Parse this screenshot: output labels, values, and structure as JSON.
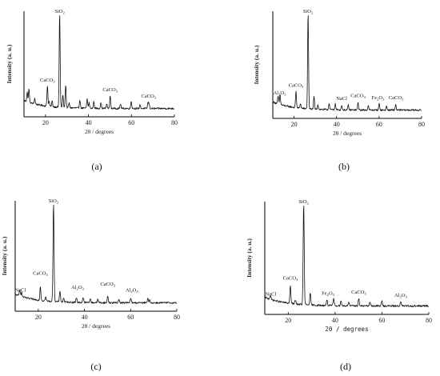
{
  "chart_data": [
    {
      "type": "line",
      "panel_label": "(a)",
      "xlabel": "2θ / degrees",
      "ylabel": "Intensity (a. u.)",
      "xlim": [
        10,
        80
      ],
      "xticks": [
        20,
        40,
        60,
        80
      ],
      "grid": false,
      "peaks": [
        {
          "x": 11.5,
          "y": 0.1
        },
        {
          "x": 12.3,
          "y": 0.14
        },
        {
          "x": 15.0,
          "y": 0.06
        },
        {
          "x": 20.9,
          "y": 0.22
        },
        {
          "x": 21.7,
          "y": 0.05
        },
        {
          "x": 23.1,
          "y": 0.06
        },
        {
          "x": 26.6,
          "y": 1.0
        },
        {
          "x": 28.1,
          "y": 0.13
        },
        {
          "x": 29.4,
          "y": 0.24
        },
        {
          "x": 31.0,
          "y": 0.05
        },
        {
          "x": 36.0,
          "y": 0.09
        },
        {
          "x": 39.4,
          "y": 0.1
        },
        {
          "x": 40.3,
          "y": 0.06
        },
        {
          "x": 42.5,
          "y": 0.07
        },
        {
          "x": 45.8,
          "y": 0.06
        },
        {
          "x": 48.5,
          "y": 0.05
        },
        {
          "x": 50.1,
          "y": 0.13
        },
        {
          "x": 54.9,
          "y": 0.05
        },
        {
          "x": 59.9,
          "y": 0.08
        },
        {
          "x": 64.0,
          "y": 0.04
        },
        {
          "x": 67.7,
          "y": 0.06
        },
        {
          "x": 68.2,
          "y": 0.05
        }
      ],
      "annotations": [
        {
          "base": "SiO",
          "sub": "2",
          "x": 26.6,
          "y": 1.0
        },
        {
          "base": "CaCO",
          "sub": "3",
          "x": 20.9,
          "y": 0.27
        },
        {
          "base": "CaCO",
          "sub": "3",
          "x": 50.1,
          "y": 0.17
        },
        {
          "base": "CaCO",
          "sub": "3",
          "x": 68.0,
          "y": 0.1
        }
      ]
    },
    {
      "type": "line",
      "panel_label": "(b)",
      "xlabel": "2θ / degrees",
      "ylabel": "Intensity (a. u.)",
      "xlim": [
        10,
        80
      ],
      "xticks": [
        20,
        40,
        60,
        80
      ],
      "grid": false,
      "peaks": [
        {
          "x": 12.5,
          "y": 0.08
        },
        {
          "x": 13.4,
          "y": 0.1
        },
        {
          "x": 20.9,
          "y": 0.17
        },
        {
          "x": 23.0,
          "y": 0.05
        },
        {
          "x": 26.6,
          "y": 1.0
        },
        {
          "x": 29.4,
          "y": 0.13
        },
        {
          "x": 31.2,
          "y": 0.05
        },
        {
          "x": 36.5,
          "y": 0.07
        },
        {
          "x": 39.4,
          "y": 0.06
        },
        {
          "x": 42.4,
          "y": 0.05
        },
        {
          "x": 45.5,
          "y": 0.05
        },
        {
          "x": 50.1,
          "y": 0.08
        },
        {
          "x": 54.9,
          "y": 0.05
        },
        {
          "x": 60.0,
          "y": 0.07
        },
        {
          "x": 63.5,
          "y": 0.04
        },
        {
          "x": 67.8,
          "y": 0.06
        }
      ],
      "annotations": [
        {
          "base": "SiO",
          "sub": "2",
          "x": 26.6,
          "y": 1.0
        },
        {
          "base": "Al",
          "sub": "2",
          "base2": "O",
          "sub2": "3",
          "x": 13.2,
          "y": 0.15
        },
        {
          "base": "CaCO",
          "sub": "3",
          "x": 20.9,
          "y": 0.23
        },
        {
          "base": "NaCl",
          "x": 42.4,
          "y": 0.09
        },
        {
          "base": "CaCO",
          "sub": "3",
          "x": 50.1,
          "y": 0.12
        },
        {
          "base": "Fe",
          "sub": "2",
          "base2": "O",
          "sub2": "3",
          "x": 59.5,
          "y": 0.1
        },
        {
          "base": "CaCO",
          "sub": "3",
          "x": 68.0,
          "y": 0.1
        }
      ]
    },
    {
      "type": "line",
      "panel_label": "(c)",
      "xlabel": "2θ / degrees",
      "ylabel": "Intensity (a. u.)",
      "xlim": [
        10,
        80
      ],
      "xticks": [
        20,
        40,
        60,
        80
      ],
      "grid": false,
      "peaks": [
        {
          "x": 12.0,
          "y": 0.07
        },
        {
          "x": 12.8,
          "y": 0.04
        },
        {
          "x": 20.9,
          "y": 0.14
        },
        {
          "x": 23.2,
          "y": 0.04
        },
        {
          "x": 26.6,
          "y": 1.0
        },
        {
          "x": 29.4,
          "y": 0.11
        },
        {
          "x": 31.0,
          "y": 0.04
        },
        {
          "x": 36.5,
          "y": 0.05
        },
        {
          "x": 39.4,
          "y": 0.05
        },
        {
          "x": 42.5,
          "y": 0.04
        },
        {
          "x": 45.8,
          "y": 0.04
        },
        {
          "x": 50.1,
          "y": 0.07
        },
        {
          "x": 54.9,
          "y": 0.04
        },
        {
          "x": 60.0,
          "y": 0.05
        },
        {
          "x": 67.5,
          "y": 0.04
        },
        {
          "x": 68.2,
          "y": 0.03
        }
      ],
      "annotations": [
        {
          "base": "SiO",
          "sub": "2",
          "x": 26.6,
          "y": 1.0
        },
        {
          "base": "NaCl",
          "x": 12.2,
          "y": 0.1
        },
        {
          "base": "CaCO",
          "sub": "3",
          "x": 20.9,
          "y": 0.27
        },
        {
          "base": "Al",
          "sub": "2",
          "base2": "O",
          "sub2": "3",
          "x": 37.0,
          "y": 0.13
        },
        {
          "base": "CaCO",
          "sub": "3",
          "x": 50.1,
          "y": 0.16
        },
        {
          "base": "Al",
          "sub": "2",
          "base2": "O",
          "sub2": "3",
          "x": 60.5,
          "y": 0.1
        }
      ]
    },
    {
      "type": "line",
      "panel_label": "(d)",
      "xlabel": "2θ / degrees",
      "ylabel": "Intensity (a. u.)",
      "xlim": [
        10,
        80
      ],
      "xticks": [
        20,
        40,
        60,
        80
      ],
      "grid": false,
      "peaks": [
        {
          "x": 12.4,
          "y": 0.04
        },
        {
          "x": 20.9,
          "y": 0.17
        },
        {
          "x": 23.1,
          "y": 0.04
        },
        {
          "x": 26.6,
          "y": 1.0
        },
        {
          "x": 29.4,
          "y": 0.11
        },
        {
          "x": 36.5,
          "y": 0.06
        },
        {
          "x": 39.4,
          "y": 0.07
        },
        {
          "x": 42.5,
          "y": 0.05
        },
        {
          "x": 45.8,
          "y": 0.04
        },
        {
          "x": 50.1,
          "y": 0.07
        },
        {
          "x": 54.9,
          "y": 0.04
        },
        {
          "x": 60.0,
          "y": 0.05
        },
        {
          "x": 68.0,
          "y": 0.04
        }
      ],
      "annotations": [
        {
          "base": "SiO",
          "sub": "2",
          "x": 26.6,
          "y": 1.0
        },
        {
          "base": "NaCl",
          "x": 12.5,
          "y": 0.09
        },
        {
          "base": "CaCO",
          "sub": "3",
          "x": 20.9,
          "y": 0.25
        },
        {
          "base": "Fe",
          "sub": "2",
          "base2": "O",
          "sub2": "3",
          "x": 37.0,
          "y": 0.1
        },
        {
          "base": "CaCO",
          "sub": "3",
          "x": 50.1,
          "y": 0.11
        },
        {
          "base": "Al",
          "sub": "2",
          "base2": "O",
          "sub2": "3",
          "x": 68.0,
          "y": 0.08
        }
      ]
    }
  ]
}
